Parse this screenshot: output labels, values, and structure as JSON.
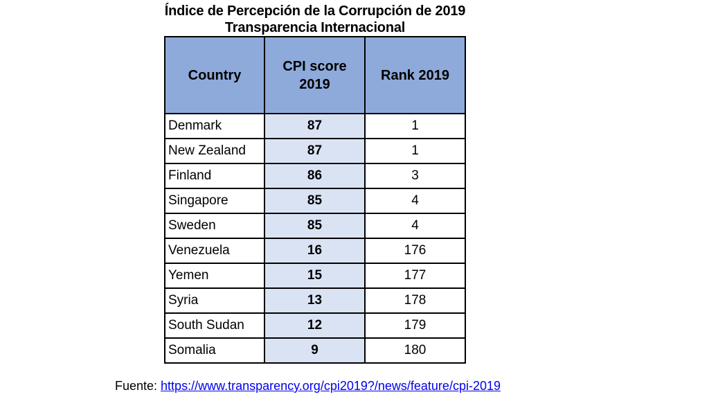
{
  "title": {
    "line1": "Índice de Percepción de la Corrupción de 2019",
    "line2": "Transparencia Internacional"
  },
  "table": {
    "headers": {
      "country": "Country",
      "score": "CPI score 2019",
      "rank": "Rank 2019"
    },
    "rows": [
      {
        "country": "Denmark",
        "score": "87",
        "rank": "1"
      },
      {
        "country": "New Zealand",
        "score": "87",
        "rank": "1"
      },
      {
        "country": "Finland",
        "score": "86",
        "rank": "3"
      },
      {
        "country": "Singapore",
        "score": "85",
        "rank": "4"
      },
      {
        "country": "Sweden",
        "score": "85",
        "rank": "4"
      },
      {
        "country": "Venezuela",
        "score": "16",
        "rank": "176"
      },
      {
        "country": "Yemen",
        "score": "15",
        "rank": "177"
      },
      {
        "country": "Syria",
        "score": "13",
        "rank": "178"
      },
      {
        "country": "South Sudan",
        "score": "12",
        "rank": "179"
      },
      {
        "country": "Somalia",
        "score": "9",
        "rank": "180"
      }
    ]
  },
  "source": {
    "label": "Fuente: ",
    "url_text": "https://www.transparency.org/cpi2019?/news/feature/cpi-2019"
  },
  "colors": {
    "header_bg": "#8eaadb",
    "score_bg": "#dae3f3",
    "link": "#0000ee"
  }
}
